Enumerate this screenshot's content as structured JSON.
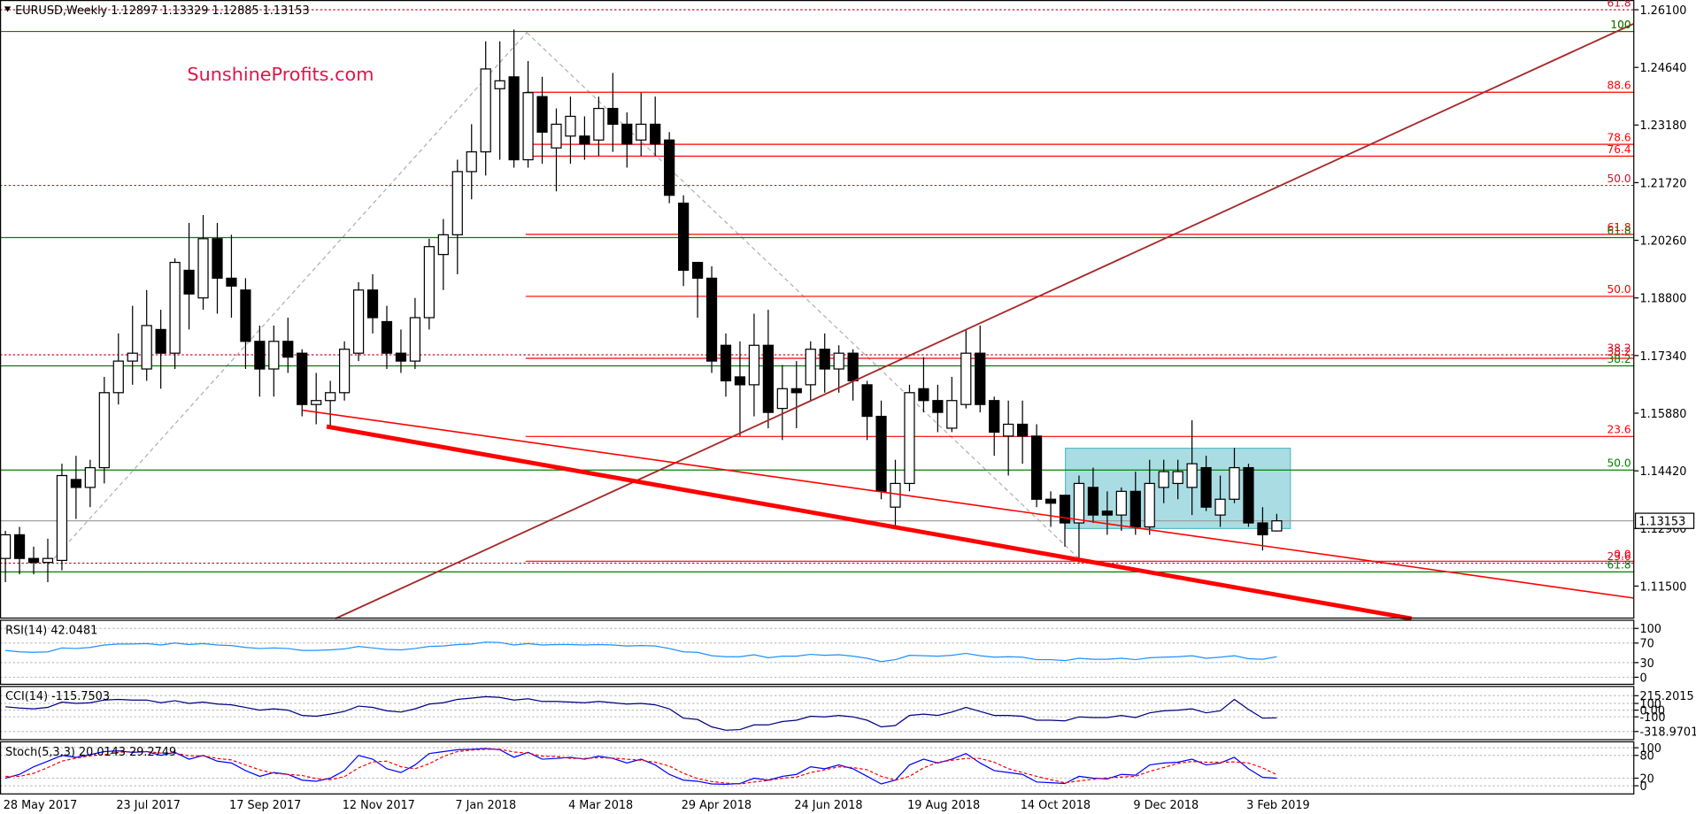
{
  "chart_data": [
    {
      "type": "candlestick",
      "title": "EURUSD,Weekly",
      "annotation": "SunshineProfits.com",
      "categories": [
        null,
        "28 May 2017",
        null,
        null,
        null,
        null,
        null,
        null,
        null,
        "23 Jul 2017",
        null,
        null,
        null,
        null,
        null,
        null,
        null,
        "17 Sep 2017",
        null,
        null,
        null,
        null,
        null,
        null,
        null,
        "12 Nov 2017",
        null,
        null,
        null,
        null,
        null,
        null,
        null,
        "7 Jan 2018",
        null,
        null,
        null,
        null,
        null,
        null,
        null,
        "4 Mar 2018",
        null,
        null,
        null,
        null,
        null,
        null,
        null,
        "29 Apr 2018",
        null,
        null,
        null,
        null,
        null,
        null,
        null,
        "24 Jun 2018",
        null,
        null,
        null,
        null,
        null,
        null,
        null,
        "19 Aug 2018",
        null,
        null,
        null,
        null,
        null,
        null,
        null,
        "14 Oct 2018",
        null,
        null,
        null,
        null,
        null,
        null,
        null,
        "9 Dec 2018",
        null,
        null,
        null,
        null,
        null,
        null,
        null,
        "3 Feb 2019",
        null
      ],
      "open": [
        1.122,
        1.128,
        1.122,
        1.121,
        1.1215,
        1.142,
        1.14,
        1.145,
        1.164,
        1.172,
        1.17,
        1.18,
        1.174,
        1.195,
        1.188,
        1.203,
        1.193,
        1.19,
        1.177,
        1.17,
        1.177,
        1.174,
        1.161,
        1.162,
        1.164,
        1.174,
        1.19,
        1.182,
        1.174,
        1.172,
        1.183,
        1.199,
        1.204,
        1.22,
        1.225,
        1.241,
        1.244,
        1.223,
        1.239,
        1.226,
        1.229,
        1.229,
        1.228,
        1.236,
        1.232,
        1.228,
        1.232,
        1.228,
        1.212,
        1.197,
        1.193,
        1.176,
        1.168,
        1.166,
        1.176,
        1.16,
        1.165,
        1.166,
        1.175,
        1.17,
        1.174,
        1.166,
        1.158,
        1.135,
        1.141,
        1.165,
        1.162,
        1.155,
        1.161,
        1.174,
        1.162,
        1.153,
        1.156,
        1.153,
        1.137,
        1.138,
        1.131,
        1.14,
        1.134,
        1.133,
        1.139,
        1.13,
        1.14,
        1.141,
        1.14,
        1.145,
        1.133,
        1.137,
        1.145,
        1.131,
        1.12897
      ],
      "high": [
        1.129,
        1.13,
        1.125,
        1.127,
        1.146,
        1.148,
        1.147,
        1.168,
        1.179,
        1.186,
        1.19,
        1.185,
        1.198,
        1.207,
        1.209,
        1.207,
        1.204,
        1.193,
        1.181,
        1.181,
        1.183,
        1.175,
        1.169,
        1.167,
        1.177,
        1.192,
        1.194,
        1.186,
        1.18,
        1.188,
        1.203,
        1.208,
        1.223,
        1.232,
        1.253,
        1.253,
        1.256,
        1.248,
        1.244,
        1.236,
        1.239,
        1.234,
        1.239,
        1.245,
        1.235,
        1.24,
        1.239,
        1.23,
        1.214,
        1.197,
        1.196,
        1.179,
        1.177,
        1.184,
        1.185,
        1.171,
        1.172,
        1.177,
        1.179,
        1.176,
        1.175,
        1.167,
        1.162,
        1.147,
        1.166,
        1.173,
        1.166,
        1.168,
        1.18,
        1.181,
        1.163,
        1.162,
        1.162,
        1.156,
        1.139,
        1.138,
        1.143,
        1.145,
        1.139,
        1.14,
        1.144,
        1.147,
        1.147,
        1.147,
        1.157,
        1.148,
        1.143,
        1.15,
        1.146,
        1.135,
        1.13329
      ],
      "low": [
        1.116,
        1.118,
        1.118,
        1.116,
        1.119,
        1.132,
        1.135,
        1.141,
        1.161,
        1.166,
        1.167,
        1.165,
        1.17,
        1.18,
        1.185,
        1.184,
        1.183,
        1.17,
        1.163,
        1.163,
        1.169,
        1.158,
        1.156,
        1.155,
        1.162,
        1.172,
        1.179,
        1.17,
        1.169,
        1.17,
        1.18,
        1.19,
        1.194,
        1.213,
        1.219,
        1.223,
        1.221,
        1.221,
        1.222,
        1.215,
        1.222,
        1.223,
        1.224,
        1.225,
        1.221,
        1.224,
        1.224,
        1.212,
        1.191,
        1.183,
        1.169,
        1.163,
        1.153,
        1.158,
        1.155,
        1.152,
        1.155,
        1.162,
        1.164,
        1.164,
        1.162,
        1.152,
        1.137,
        1.13,
        1.139,
        1.159,
        1.154,
        1.154,
        1.16,
        1.159,
        1.148,
        1.143,
        1.146,
        1.135,
        1.13,
        1.125,
        1.121,
        1.131,
        1.128,
        1.129,
        1.128,
        1.128,
        1.136,
        1.137,
        1.133,
        1.134,
        1.13,
        1.136,
        1.13,
        1.124,
        1.12885
      ],
      "close": [
        1.128,
        1.122,
        1.121,
        1.122,
        1.143,
        1.14,
        1.145,
        1.164,
        1.172,
        1.174,
        1.181,
        1.174,
        1.197,
        1.189,
        1.203,
        1.193,
        1.191,
        1.177,
        1.17,
        1.177,
        1.173,
        1.161,
        1.162,
        1.164,
        1.175,
        1.19,
        1.183,
        1.174,
        1.172,
        1.183,
        1.201,
        1.204,
        1.22,
        1.225,
        1.246,
        1.243,
        1.223,
        1.24,
        1.23,
        1.232,
        1.234,
        1.227,
        1.236,
        1.232,
        1.227,
        1.232,
        1.227,
        1.214,
        1.195,
        1.193,
        1.172,
        1.167,
        1.166,
        1.176,
        1.159,
        1.165,
        1.164,
        1.175,
        1.17,
        1.174,
        1.167,
        1.158,
        1.139,
        1.141,
        1.164,
        1.162,
        1.159,
        1.162,
        1.174,
        1.161,
        1.154,
        1.156,
        1.153,
        1.137,
        1.136,
        1.131,
        1.141,
        1.133,
        1.133,
        1.139,
        1.13,
        1.141,
        1.144,
        1.144,
        1.146,
        1.135,
        1.137,
        1.145,
        1.131,
        1.128,
        1.13153
      ],
      "ylim": [
        1.10703,
        1.26292
      ],
      "yticks": [
        {
          "value": 1.261,
          "label": "1.26100"
        },
        {
          "value": 1.2464,
          "label": "1.24640"
        },
        {
          "value": 1.2318,
          "label": "1.23180"
        },
        {
          "value": 1.2172,
          "label": "1.21720"
        },
        {
          "value": 1.2026,
          "label": "1.20260"
        },
        {
          "value": 1.188,
          "label": "1.18800"
        },
        {
          "value": 1.1734,
          "label": "1.17340"
        },
        {
          "value": 1.1588,
          "label": "1.15880"
        },
        {
          "value": 1.1442,
          "label": "1.14420"
        },
        {
          "value": 1.1296,
          "label": "1.12960"
        },
        {
          "value": 1.115,
          "label": "1.11500"
        }
      ],
      "fib_sets": [
        {
          "color": "#ff0000",
          "style": "solid",
          "levels": [
            {
              "label": "100",
              "price": 1.2555
            },
            {
              "label": "88.6",
              "price": 1.2401
            },
            {
              "label": "78.6",
              "price": 1.2269
            },
            {
              "label": "76.4",
              "price": 1.2239
            },
            {
              "label": "61.8",
              "price": 1.2041
            },
            {
              "label": "50.0",
              "price": 1.1884
            },
            {
              "label": "38.2",
              "price": 1.1727
            },
            {
              "label": "23.6",
              "price": 1.1529
            },
            {
              "label": "0.0",
              "price": 1.1213
            }
          ]
        },
        {
          "color": "#c8102e",
          "style": "dotted",
          "levels": [
            {
              "label": "61.8",
              "price": 1.261
            },
            {
              "label": "50.0",
              "price": 1.2165
            },
            {
              "label": "38.2",
              "price": 1.1736
            },
            {
              "label": "23.6",
              "price": 1.1208
            }
          ]
        },
        {
          "color": "#008000",
          "style": "solid",
          "levels": [
            {
              "label": "100",
              "price": 1.2555
            },
            {
              "label": "61.8",
              "price": 1.2033
            },
            {
              "label": "38.2",
              "price": 1.1708
            },
            {
              "label": "50.0",
              "price": 1.1444
            },
            {
              "label": "61.8",
              "price": 1.1186
            }
          ]
        }
      ]
    },
    {
      "type": "line",
      "title": "RSI(14)",
      "color": "#1e90ff",
      "ylim": [
        0,
        100
      ],
      "yticks": [
        100,
        70,
        30,
        0
      ],
      "values": [
        55,
        52,
        51,
        52,
        60,
        59,
        61,
        66,
        68,
        68,
        69,
        66,
        70,
        67,
        69,
        66,
        65,
        61,
        59,
        60,
        59,
        55,
        55,
        56,
        58,
        63,
        60,
        57,
        56,
        59,
        63,
        64,
        67,
        68,
        72,
        71,
        66,
        69,
        66,
        67,
        67,
        66,
        67,
        66,
        64,
        65,
        64,
        59,
        52,
        51,
        44,
        42,
        42,
        46,
        40,
        43,
        43,
        47,
        45,
        46,
        43,
        39,
        32,
        36,
        45,
        44,
        43,
        45,
        49,
        44,
        41,
        42,
        41,
        36,
        36,
        34,
        39,
        37,
        37,
        39,
        36,
        40,
        41,
        42,
        44,
        39,
        41,
        44,
        38,
        37,
        42.0481
      ]
    },
    {
      "type": "line",
      "title": "CCI(14)",
      "color": "#000080",
      "ylim": [
        -318.9701,
        215.2015
      ],
      "yticks": [
        215.2015,
        100,
        {
          "value": 0,
          "label": "0.00"
        },
        -100,
        -318.9701
      ],
      "values": [
        50,
        30,
        20,
        40,
        120,
        100,
        110,
        150,
        160,
        150,
        150,
        110,
        140,
        100,
        120,
        90,
        80,
        40,
        0,
        20,
        0,
        -80,
        -90,
        -60,
        -20,
        60,
        40,
        -10,
        -30,
        20,
        90,
        110,
        160,
        180,
        200,
        190,
        150,
        170,
        130,
        130,
        120,
        110,
        130,
        110,
        90,
        100,
        80,
        20,
        -120,
        -140,
        -250,
        -300,
        -290,
        -220,
        -220,
        -170,
        -150,
        -90,
        -100,
        -80,
        -100,
        -150,
        -250,
        -230,
        -80,
        -60,
        -80,
        -30,
        40,
        -20,
        -80,
        -80,
        -90,
        -150,
        -150,
        -160,
        -100,
        -110,
        -110,
        -80,
        -110,
        -40,
        -10,
        0,
        20,
        -40,
        -10,
        160,
        10,
        -120,
        -115.7503
      ]
    },
    {
      "type": "line",
      "title": "Stoch(5,3,3)",
      "ylim": [
        0,
        100
      ],
      "yticks": [
        100,
        80,
        20,
        0
      ],
      "series": [
        {
          "color": "#0000ff",
          "values": [
            20,
            30,
            50,
            65,
            80,
            75,
            82,
            90,
            92,
            88,
            90,
            80,
            88,
            70,
            80,
            65,
            60,
            40,
            25,
            35,
            30,
            15,
            12,
            20,
            40,
            80,
            70,
            45,
            35,
            55,
            85,
            90,
            95,
            96,
            98,
            95,
            75,
            88,
            70,
            72,
            75,
            70,
            78,
            72,
            60,
            70,
            55,
            30,
            15,
            12,
            5,
            4,
            6,
            20,
            15,
            25,
            30,
            50,
            45,
            55,
            45,
            25,
            5,
            15,
            55,
            70,
            60,
            70,
            85,
            60,
            40,
            35,
            30,
            10,
            8,
            6,
            25,
            20,
            18,
            30,
            28,
            55,
            60,
            62,
            70,
            55,
            60,
            75,
            45,
            22,
            20.0143
          ]
        },
        {
          "color": "#ff0000",
          "values": [
            25,
            25,
            33,
            48,
            65,
            73,
            79,
            82,
            88,
            90,
            90,
            86,
            86,
            79,
            79,
            72,
            68,
            55,
            42,
            33,
            30,
            27,
            19,
            16,
            24,
            47,
            63,
            65,
            50,
            45,
            58,
            77,
            90,
            94,
            96,
            96,
            89,
            86,
            78,
            77,
            72,
            72,
            74,
            73,
            70,
            67,
            62,
            52,
            33,
            19,
            11,
            7,
            5,
            10,
            14,
            20,
            23,
            35,
            42,
            50,
            48,
            42,
            25,
            15,
            25,
            47,
            62,
            67,
            72,
            72,
            62,
            45,
            35,
            25,
            16,
            8,
            13,
            17,
            21,
            23,
            25,
            38,
            48,
            59,
            64,
            62,
            62,
            63,
            60,
            47,
            29.2749
          ]
        }
      ]
    }
  ]
}
